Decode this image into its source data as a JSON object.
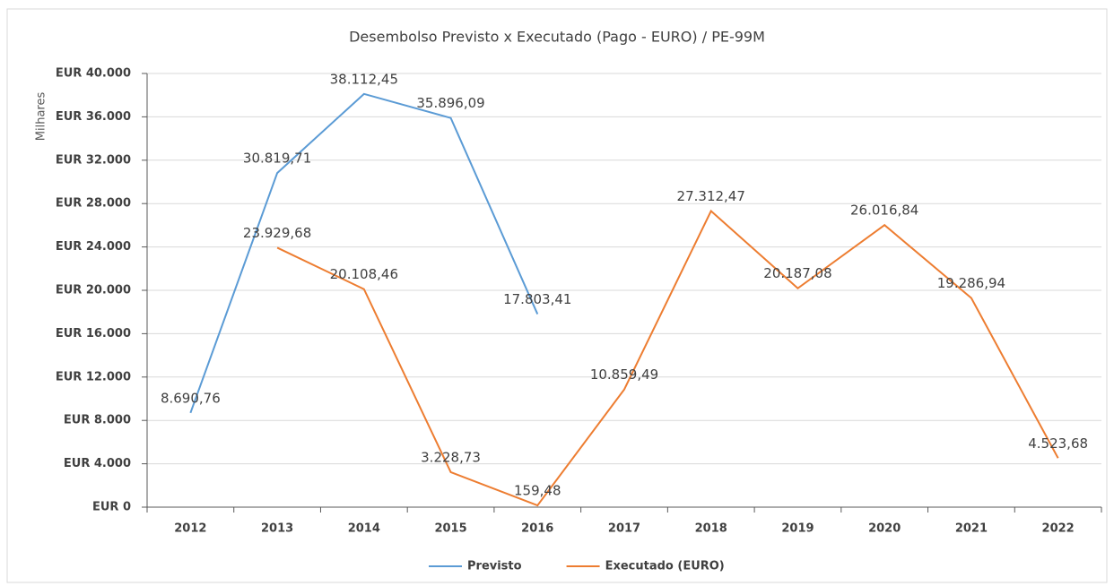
{
  "chart_data": {
    "type": "line",
    "title": "Desembolso Previsto x Executado (Pago - EURO) / PE-99M",
    "y_label": "Milhares",
    "categories": [
      "2012",
      "2013",
      "2014",
      "2015",
      "2016",
      "2017",
      "2018",
      "2019",
      "2020",
      "2021",
      "2022"
    ],
    "series": [
      {
        "name": "Previsto",
        "color": "#5b9bd5",
        "values": [
          8690.76,
          30819.71,
          38112.45,
          35896.09,
          17803.41,
          null,
          null,
          null,
          null,
          null,
          null
        ],
        "value_labels": [
          "8.690,76",
          "30.819,71",
          "38.112,45",
          "35.896,09",
          "17.803,41",
          null,
          null,
          null,
          null,
          null,
          null
        ]
      },
      {
        "name": "Executado (EURO)",
        "color": "#ed7d31",
        "values": [
          null,
          23929.68,
          20108.46,
          3228.73,
          159.48,
          10859.49,
          27312.47,
          20187.08,
          26016.84,
          19286.94,
          4523.68
        ],
        "value_labels": [
          null,
          "23.929,68",
          "20.108,46",
          "3.228,73",
          "159,48",
          "10.859,49",
          "27.312,47",
          "20.187,08",
          "26.016,84",
          "19.286,94",
          "4.523,68"
        ]
      }
    ],
    "ylim": [
      0,
      40000
    ],
    "yticks": [
      {
        "value": 0,
        "label": "EUR 0"
      },
      {
        "value": 4000,
        "label": "EUR 4.000"
      },
      {
        "value": 8000,
        "label": "EUR 8.000"
      },
      {
        "value": 12000,
        "label": "EUR 12.000"
      },
      {
        "value": 16000,
        "label": "EUR 16.000"
      },
      {
        "value": 20000,
        "label": "EUR 20.000"
      },
      {
        "value": 24000,
        "label": "EUR 24.000"
      },
      {
        "value": 28000,
        "label": "EUR 28.000"
      },
      {
        "value": 32000,
        "label": "EUR 32.000"
      },
      {
        "value": 36000,
        "label": "EUR 36.000"
      },
      {
        "value": 40000,
        "label": "EUR 40.000"
      }
    ],
    "grid": true,
    "legend": "bottom"
  }
}
